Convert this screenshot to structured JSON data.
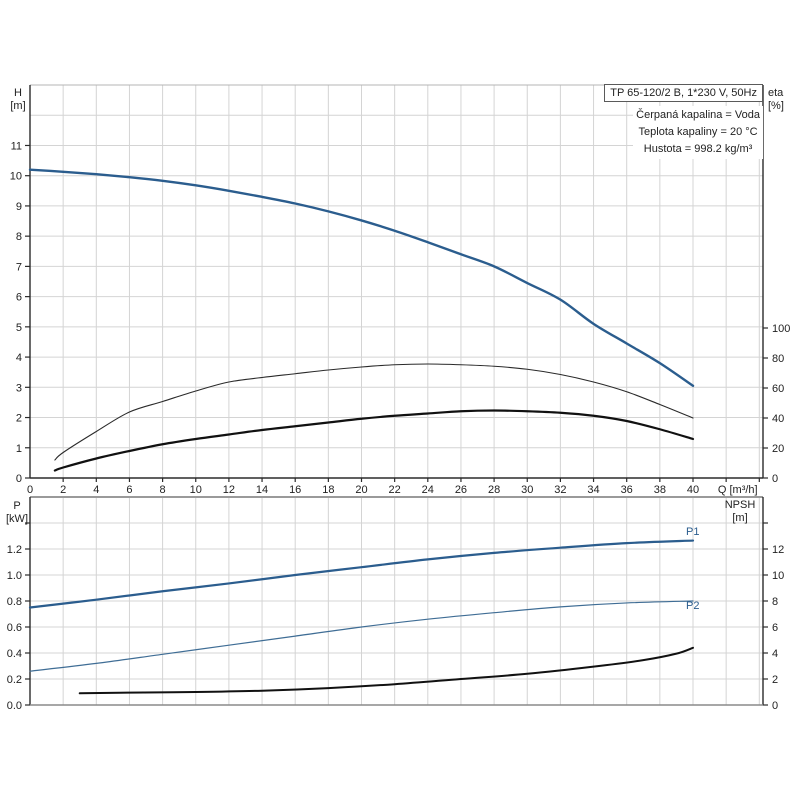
{
  "header": {
    "pump_title": "TP 65-120/2 B, 1*230 V, 50Hz",
    "info_lines": [
      "Čerpaná kapalina = Voda",
      "Teplota kapaliny = 20 °C",
      "Hustota = 998.2 kg/m³"
    ]
  },
  "colors": {
    "curve_blue": "#2b5d8e",
    "curve_blue_thin": "#3f6d95",
    "curve_black": "#151515",
    "grid": "#d4d4d4",
    "frame": "#a0a0a0",
    "axis": "#2b2b2b",
    "text": "#222222"
  },
  "chart_data": [
    {
      "type": "line",
      "name": "pump-performance-chart",
      "xlabel": "Q [m³/h]",
      "ylabel_left": [
        "H",
        "[m]"
      ],
      "ylabel_right": [
        "eta",
        "[%]"
      ],
      "x_ticks": [
        0,
        2,
        4,
        6,
        8,
        10,
        12,
        14,
        16,
        18,
        20,
        22,
        24,
        26,
        28,
        30,
        32,
        34,
        36,
        38,
        40
      ],
      "x_grid_end": 44,
      "x_range": [
        0,
        44.2
      ],
      "y_left_range": [
        0,
        13
      ],
      "y_left_ticks": [
        0,
        1,
        2,
        3,
        4,
        5,
        6,
        7,
        8,
        9,
        10,
        11
      ],
      "y_right_range": [
        0,
        100
      ],
      "y_right_ticks": [
        0,
        20,
        40,
        60,
        80,
        100
      ],
      "grid": true,
      "legend_position": "none",
      "series": [
        {
          "name": "H-curve",
          "axis": "left",
          "color": "#2b5d8e",
          "stroke_width": 2.4,
          "points": [
            [
              0,
              10.2
            ],
            [
              2,
              10.13
            ],
            [
              4,
              10.05
            ],
            [
              6,
              9.95
            ],
            [
              8,
              9.83
            ],
            [
              10,
              9.68
            ],
            [
              12,
              9.5
            ],
            [
              14,
              9.3
            ],
            [
              16,
              9.08
            ],
            [
              18,
              8.82
            ],
            [
              20,
              8.52
            ],
            [
              22,
              8.18
            ],
            [
              24,
              7.8
            ],
            [
              26,
              7.4
            ],
            [
              28,
              7.0
            ],
            [
              30,
              6.45
            ],
            [
              32,
              5.9
            ],
            [
              34,
              5.1
            ],
            [
              36,
              4.45
            ],
            [
              38,
              3.8
            ],
            [
              40,
              3.05
            ]
          ]
        },
        {
          "name": "eta-pump-curve",
          "axis": "right",
          "color": "#2a2a2a",
          "stroke_width": 1.1,
          "points": [
            [
              1.5,
              12
            ],
            [
              2,
              17
            ],
            [
              4,
              31
            ],
            [
              6,
              44
            ],
            [
              8,
              51
            ],
            [
              10,
              58
            ],
            [
              12,
              64
            ],
            [
              14,
              67
            ],
            [
              16,
              69.5
            ],
            [
              18,
              72
            ],
            [
              20,
              74
            ],
            [
              22,
              75.5
            ],
            [
              24,
              76
            ],
            [
              26,
              75.5
            ],
            [
              28,
              74.5
            ],
            [
              30,
              72.5
            ],
            [
              32,
              69
            ],
            [
              34,
              64
            ],
            [
              36,
              57.5
            ],
            [
              38,
              49
            ],
            [
              40,
              40
            ]
          ]
        },
        {
          "name": "eta-total-curve",
          "axis": "right",
          "color": "#111111",
          "stroke_width": 2.2,
          "points": [
            [
              1.5,
              5
            ],
            [
              2,
              7
            ],
            [
              4,
              13
            ],
            [
              6,
              18
            ],
            [
              8,
              22.5
            ],
            [
              10,
              26
            ],
            [
              12,
              29
            ],
            [
              14,
              32
            ],
            [
              16,
              34.5
            ],
            [
              18,
              37
            ],
            [
              20,
              39.5
            ],
            [
              22,
              41.5
            ],
            [
              24,
              43
            ],
            [
              26,
              44.5
            ],
            [
              28,
              45
            ],
            [
              30,
              44.5
            ],
            [
              32,
              43.5
            ],
            [
              34,
              41.5
            ],
            [
              36,
              38
            ],
            [
              38,
              32.5
            ],
            [
              40,
              26
            ]
          ]
        }
      ]
    },
    {
      "type": "line",
      "name": "power-npsh-chart",
      "xlabel": "",
      "ylabel_left": [
        "P",
        "[kW]"
      ],
      "ylabel_right": [
        "NPSH",
        "[m]"
      ],
      "x_grid_end": 44,
      "x_range": [
        0,
        44.2
      ],
      "y_left_range": [
        0,
        1.6
      ],
      "y_left_ticks": [
        "0.0",
        "0.2",
        "0.4",
        "0.6",
        "0.8",
        "1.0",
        "1.2"
      ],
      "y_right_range": [
        0,
        16
      ],
      "y_right_ticks": [
        0,
        2,
        4,
        6,
        8,
        10,
        12
      ],
      "grid": true,
      "legend_position": "inline-right",
      "series": [
        {
          "name": "P1-curve",
          "label": "P1",
          "axis": "left",
          "color": "#2b5d8e",
          "stroke_width": 2.2,
          "points": [
            [
              0,
              0.75
            ],
            [
              4,
              0.81
            ],
            [
              8,
              0.875
            ],
            [
              12,
              0.935
            ],
            [
              16,
              1.0
            ],
            [
              20,
              1.06
            ],
            [
              24,
              1.12
            ],
            [
              28,
              1.17
            ],
            [
              32,
              1.21
            ],
            [
              36,
              1.245
            ],
            [
              40,
              1.265
            ]
          ]
        },
        {
          "name": "P2-curve",
          "label": "P2",
          "axis": "left",
          "color": "#3f6d95",
          "stroke_width": 1.2,
          "points": [
            [
              0,
              0.26
            ],
            [
              4,
              0.32
            ],
            [
              8,
              0.39
            ],
            [
              12,
              0.46
            ],
            [
              16,
              0.53
            ],
            [
              20,
              0.6
            ],
            [
              24,
              0.66
            ],
            [
              28,
              0.71
            ],
            [
              32,
              0.755
            ],
            [
              36,
              0.785
            ],
            [
              40,
              0.8
            ]
          ]
        },
        {
          "name": "NPSH-curve",
          "axis": "right",
          "color": "#111111",
          "stroke_width": 2.0,
          "points": [
            [
              3,
              0.9
            ],
            [
              6,
              0.95
            ],
            [
              10,
              1.0
            ],
            [
              14,
              1.1
            ],
            [
              18,
              1.3
            ],
            [
              22,
              1.6
            ],
            [
              26,
              2.0
            ],
            [
              30,
              2.4
            ],
            [
              34,
              2.95
            ],
            [
              37,
              3.45
            ],
            [
              39,
              3.95
            ],
            [
              40,
              4.4
            ]
          ]
        }
      ]
    }
  ]
}
